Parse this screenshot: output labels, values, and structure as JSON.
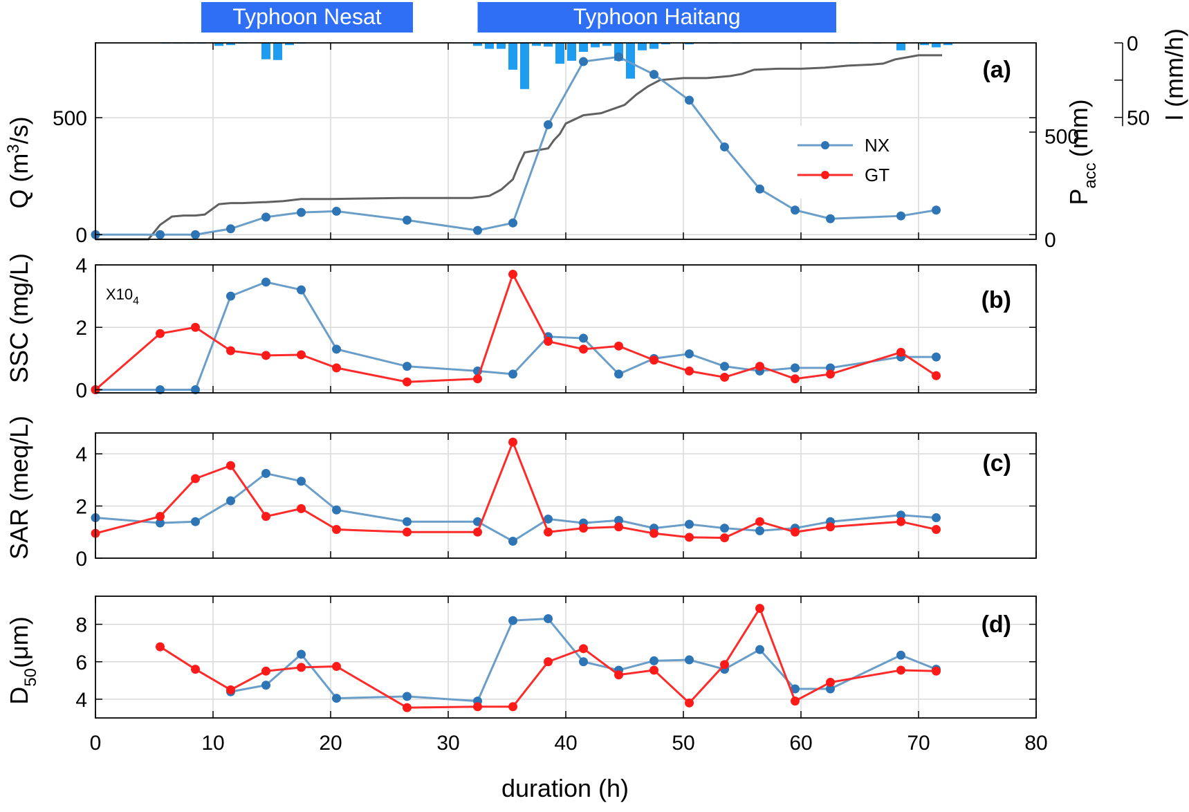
{
  "colors": {
    "nx": "#6a9ec9",
    "nx_marker": "#2e75b6",
    "gt": "#ff2a2a",
    "gt_marker": "#ff1a1a",
    "precip_acc": "#606060",
    "rain_bars": "#1e9cf0",
    "typhoon_box": "#2f6ff5",
    "grid": "#d9d9d9"
  },
  "typhoons": [
    {
      "label": "Typhoon Nesat",
      "start_h": 9.0,
      "end_h": 27.0
    },
    {
      "label": "Typhoon Haitang",
      "start_h": 32.5,
      "end_h": 63.0
    }
  ],
  "x_axis": {
    "label": "duration (h)",
    "range": [
      0,
      80
    ],
    "ticks": [
      "0",
      "10",
      "20",
      "30",
      "40",
      "50",
      "60",
      "70",
      "80"
    ]
  },
  "legend": {
    "nx": "NX",
    "gt": "GT"
  },
  "chart_data": [
    {
      "panel": "(a)",
      "type": "line",
      "ylabel_main": "Q (m",
      "ylabel_sup": "3",
      "ylabel_tail": "/s)",
      "ylim": [
        -20,
        820
      ],
      "yticks": [
        "0",
        "500"
      ],
      "right_axis": {
        "label_main": "P",
        "label_sub": "acc",
        "label_tail": "(mm)",
        "ylim": [
          0,
          950
        ],
        "ticks": [
          "0",
          "500"
        ]
      },
      "intensity_axis": {
        "label": "I (mm/h)",
        "ylim": [
          0,
          65
        ],
        "ticks": [
          "0",
          "50"
        ]
      },
      "series": [
        {
          "name": "NX",
          "x": [
            0,
            5.5,
            8.5,
            11.5,
            14.5,
            17.5,
            20.5,
            26.5,
            32.5,
            35.5,
            38.5,
            41.5,
            44.5,
            47.5,
            50.5,
            53.5,
            56.5,
            59.5,
            62.5,
            68.5,
            71.5
          ],
          "y": [
            0,
            0,
            0,
            25,
            75,
            95,
            100,
            62,
            18,
            50,
            470,
            740,
            760,
            685,
            575,
            375,
            195,
            105,
            68,
            80,
            105
          ]
        }
      ],
      "precip_accum": {
        "x": [
          0,
          4.5,
          5.5,
          6.5,
          7.5,
          8.5,
          9.3,
          10.5,
          11.5,
          12.5,
          14.5,
          16,
          17.5,
          20,
          26,
          32,
          33.5,
          34.5,
          35.5,
          36,
          36.5,
          37.5,
          38.5,
          39,
          39.5,
          40,
          41.5,
          43,
          45,
          46,
          47,
          48,
          50,
          52,
          54,
          55,
          56,
          58,
          60,
          62,
          64,
          66,
          67,
          68,
          70,
          72
        ],
        "y": [
          0,
          0,
          70,
          110,
          115,
          115,
          120,
          170,
          175,
          175,
          180,
          185,
          195,
          195,
          200,
          200,
          210,
          240,
          290,
          360,
          420,
          430,
          440,
          480,
          510,
          560,
          600,
          610,
          650,
          700,
          740,
          770,
          780,
          780,
          790,
          800,
          820,
          825,
          825,
          830,
          840,
          845,
          850,
          870,
          890,
          890
        ]
      },
      "rain_intensity": {
        "x": [
          6,
          7,
          8,
          9,
          10.5,
          11.5,
          12.5,
          14.5,
          15.5,
          16.5,
          17.5,
          32.5,
          33.5,
          34.5,
          35.5,
          36.5,
          37.5,
          38.5,
          39.5,
          40.5,
          41.5,
          42.5,
          43.5,
          44.5,
          45.5,
          46.5,
          47.5,
          48.5,
          50.5,
          52.5,
          54.5,
          62.5,
          64.5,
          66.5,
          68.5,
          70.5,
          71.5,
          72.5
        ],
        "y": [
          0.5,
          0.5,
          0.5,
          0.5,
          2,
          1.5,
          0.5,
          11,
          11.5,
          1.5,
          0.5,
          2,
          4,
          4,
          18,
          31,
          2,
          2.5,
          14,
          12,
          6,
          3,
          2,
          12,
          24,
          5,
          4,
          1,
          1,
          0.5,
          0.5,
          0.5,
          0.5,
          0.5,
          5,
          1.5,
          3,
          1.5
        ]
      }
    },
    {
      "panel": "(b)",
      "type": "line",
      "ylabel": "SSC (mg/L)",
      "multiplier_main": "X10",
      "multiplier_sub": "4",
      "ylim": [
        -0.1,
        4
      ],
      "yticks": [
        "0",
        "2",
        "4"
      ],
      "series": [
        {
          "name": "NX",
          "x": [
            0,
            5.5,
            8.5,
            11.5,
            14.5,
            17.5,
            20.5,
            26.5,
            32.5,
            35.5,
            38.5,
            41.5,
            44.5,
            47.5,
            50.5,
            53.5,
            56.5,
            59.5,
            62.5,
            68.5,
            71.5
          ],
          "y": [
            0,
            0,
            0,
            3.0,
            3.45,
            3.2,
            1.3,
            0.75,
            0.6,
            0.5,
            1.7,
            1.65,
            0.5,
            1.0,
            1.15,
            0.75,
            0.6,
            0.7,
            0.7,
            1.05,
            1.05
          ]
        },
        {
          "name": "GT",
          "x": [
            0,
            5.5,
            8.5,
            11.5,
            14.5,
            17.5,
            20.5,
            26.5,
            32.5,
            35.5,
            38.5,
            41.5,
            44.5,
            47.5,
            50.5,
            53.5,
            56.5,
            59.5,
            62.5,
            68.5,
            71.5
          ],
          "y": [
            0,
            1.8,
            2.0,
            1.25,
            1.1,
            1.12,
            0.7,
            0.25,
            0.35,
            3.7,
            1.55,
            1.3,
            1.4,
            0.95,
            0.6,
            0.4,
            0.75,
            0.35,
            0.5,
            1.2,
            0.45
          ]
        }
      ]
    },
    {
      "panel": "(c)",
      "type": "line",
      "ylabel": "SAR (meq/L)",
      "ylim": [
        0,
        4.8
      ],
      "yticks": [
        "0",
        "2",
        "4"
      ],
      "series": [
        {
          "name": "NX",
          "x": [
            0,
            5.5,
            8.5,
            11.5,
            14.5,
            17.5,
            20.5,
            26.5,
            32.5,
            35.5,
            38.5,
            41.5,
            44.5,
            47.5,
            50.5,
            53.5,
            56.5,
            59.5,
            62.5,
            68.5,
            71.5
          ],
          "y": [
            1.55,
            1.35,
            1.4,
            2.2,
            3.25,
            2.95,
            1.85,
            1.4,
            1.4,
            0.65,
            1.5,
            1.35,
            1.45,
            1.15,
            1.3,
            1.15,
            1.05,
            1.15,
            1.4,
            1.65,
            1.55
          ]
        },
        {
          "name": "GT",
          "x": [
            0,
            5.5,
            8.5,
            11.5,
            14.5,
            17.5,
            20.5,
            26.5,
            32.5,
            35.5,
            38.5,
            41.5,
            44.5,
            47.5,
            50.5,
            53.5,
            56.5,
            59.5,
            62.5,
            68.5,
            71.5
          ],
          "y": [
            0.95,
            1.6,
            3.05,
            3.55,
            1.6,
            1.9,
            1.1,
            1.0,
            1.0,
            4.45,
            1.0,
            1.15,
            1.2,
            0.95,
            0.8,
            0.78,
            1.4,
            1.0,
            1.2,
            1.4,
            1.1
          ]
        }
      ]
    },
    {
      "panel": "(d)",
      "type": "line",
      "ylabel_main": "D",
      "ylabel_sub": "50",
      "ylabel_tail": "(μm)",
      "ylim": [
        3,
        9.5
      ],
      "yticks": [
        "4",
        "6",
        "8"
      ],
      "series": [
        {
          "name": "NX",
          "x": [
            11.5,
            14.5,
            17.5,
            20.5,
            26.5,
            32.5,
            35.5,
            38.5,
            41.5,
            44.5,
            47.5,
            50.5,
            53.5,
            56.5,
            59.5,
            62.5,
            68.5,
            71.5
          ],
          "y": [
            4.4,
            4.75,
            6.4,
            4.05,
            4.15,
            3.9,
            8.2,
            8.3,
            6.0,
            5.55,
            6.05,
            6.1,
            5.6,
            6.65,
            4.55,
            4.55,
            6.35,
            5.6
          ]
        },
        {
          "name": "GT",
          "x": [
            5.5,
            8.5,
            11.5,
            14.5,
            17.5,
            20.5,
            26.5,
            32.5,
            35.5,
            38.5,
            41.5,
            44.5,
            47.5,
            50.5,
            53.5,
            56.5,
            59.5,
            62.5,
            68.5,
            71.5
          ],
          "y": [
            6.8,
            5.6,
            4.5,
            5.5,
            5.7,
            5.75,
            3.55,
            3.6,
            3.6,
            6.0,
            6.7,
            5.3,
            5.55,
            3.8,
            5.85,
            8.85,
            3.9,
            4.9,
            5.55,
            5.5
          ]
        }
      ]
    }
  ]
}
